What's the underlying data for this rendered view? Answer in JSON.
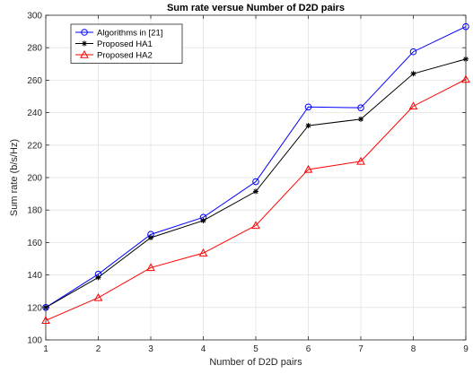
{
  "chart_data": {
    "type": "line",
    "title": "Sum rate versue Number of D2D pairs",
    "xlabel": "Number of D2D pairs",
    "ylabel": "Sum rate (b/s/Hz)",
    "x": [
      1,
      2,
      3,
      4,
      5,
      6,
      7,
      8,
      9
    ],
    "xlim": [
      1,
      9
    ],
    "ylim": [
      100,
      300
    ],
    "xticks": [
      "1",
      "2",
      "3",
      "4",
      "5",
      "6",
      "7",
      "8",
      "9"
    ],
    "yticks": [
      "100",
      "120",
      "140",
      "160",
      "180",
      "200",
      "220",
      "240",
      "260",
      "280",
      "300"
    ],
    "grid": true,
    "legend_position": "top-left",
    "series": [
      {
        "name": "Algorithms in [21]",
        "color": "#0000ff",
        "marker": "circle",
        "values": [
          120,
          140.5,
          165,
          175.5,
          197.5,
          243.5,
          243,
          277.5,
          293
        ]
      },
      {
        "name": "Proposed HA1",
        "color": "#000000",
        "marker": "asterisk",
        "values": [
          120,
          138.5,
          163,
          173.5,
          191.5,
          232,
          236,
          264,
          273
        ]
      },
      {
        "name": "Proposed HA2",
        "color": "#ff0000",
        "marker": "triangle",
        "values": [
          112,
          126,
          144.5,
          153.5,
          170.5,
          205,
          210,
          244,
          260.5
        ]
      }
    ]
  }
}
